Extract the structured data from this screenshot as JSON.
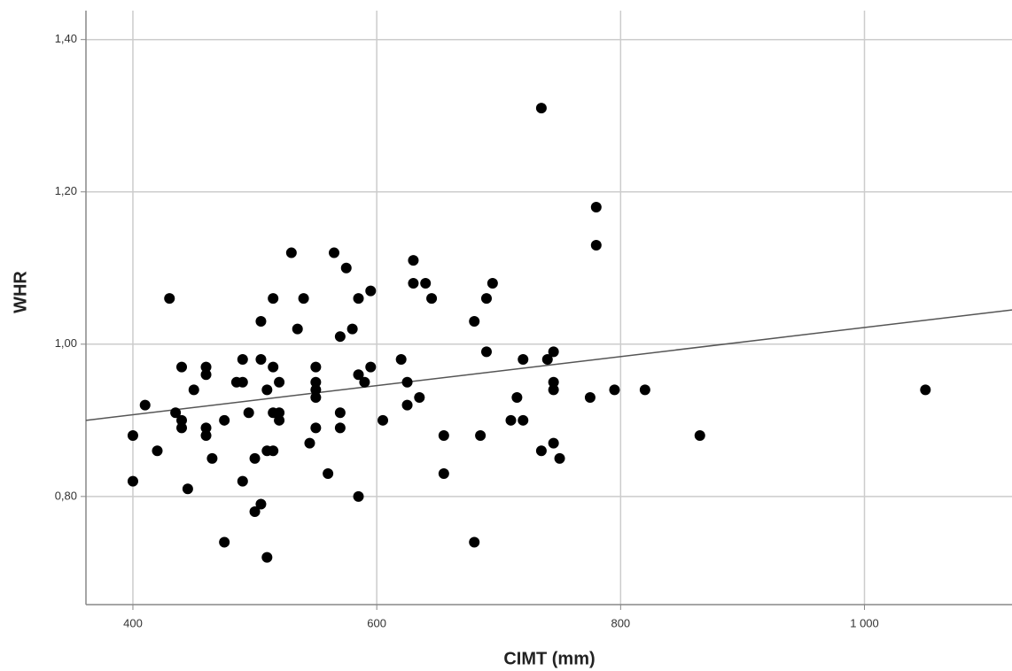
{
  "chart_data": {
    "type": "scatter",
    "x_label": "CIMT (mm)",
    "y_label": "WHR",
    "xlim": [
      361.5,
      1121
    ],
    "ylim": [
      0.658,
      1.438
    ],
    "xticks": [
      400,
      600,
      800,
      {
        "value": 1000,
        "label": "1 000"
      }
    ],
    "yticks": [
      {
        "value": 0.8,
        "label": "0,80"
      },
      {
        "value": 1.0,
        "label": "1,00"
      },
      {
        "value": 1.2,
        "label": "1,20"
      },
      {
        "value": 1.4,
        "label": "1,40"
      }
    ],
    "grid": true,
    "color": "#000000",
    "x": [
      400,
      400,
      410,
      420,
      430,
      435,
      440,
      440,
      440,
      445,
      450,
      460,
      460,
      460,
      460,
      465,
      475,
      475,
      485,
      490,
      490,
      490,
      495,
      500,
      500,
      505,
      505,
      505,
      510,
      510,
      510,
      515,
      515,
      515,
      515,
      520,
      520,
      520,
      530,
      535,
      540,
      545,
      550,
      550,
      550,
      550,
      550,
      560,
      565,
      570,
      570,
      570,
      575,
      580,
      585,
      585,
      585,
      590,
      595,
      595,
      605,
      620,
      625,
      625,
      630,
      630,
      635,
      640,
      645,
      655,
      655,
      680,
      680,
      685,
      690,
      690,
      695,
      710,
      715,
      720,
      720,
      735,
      735,
      740,
      745,
      745,
      745,
      745,
      750,
      775,
      780,
      780,
      795,
      820,
      865,
      1050
    ],
    "y": [
      0.88,
      0.82,
      0.92,
      0.86,
      1.06,
      0.91,
      0.9,
      0.89,
      0.97,
      0.81,
      0.94,
      0.97,
      0.96,
      0.89,
      0.88,
      0.85,
      0.9,
      0.74,
      0.95,
      0.98,
      0.95,
      0.82,
      0.91,
      0.85,
      0.78,
      0.79,
      1.03,
      0.98,
      0.94,
      0.86,
      0.72,
      1.06,
      0.97,
      0.91,
      0.86,
      0.95,
      0.91,
      0.9,
      1.12,
      1.02,
      1.06,
      0.87,
      0.97,
      0.95,
      0.94,
      0.93,
      0.89,
      0.83,
      1.12,
      1.01,
      0.91,
      0.89,
      1.1,
      1.02,
      1.06,
      0.96,
      0.8,
      0.95,
      1.07,
      0.97,
      0.9,
      0.98,
      0.95,
      0.92,
      1.11,
      1.08,
      0.93,
      1.08,
      1.06,
      0.88,
      0.83,
      1.03,
      0.74,
      0.88,
      1.06,
      0.99,
      1.08,
      0.9,
      0.93,
      0.98,
      0.9,
      1.31,
      0.86,
      0.98,
      0.99,
      0.95,
      0.94,
      0.87,
      0.85,
      0.93,
      1.18,
      1.13,
      0.94,
      0.94,
      0.88,
      0.94
    ],
    "fit_line": {
      "x": [
        361.5,
        1121
      ],
      "y": [
        0.9,
        1.045
      ],
      "color": "#555555"
    }
  }
}
